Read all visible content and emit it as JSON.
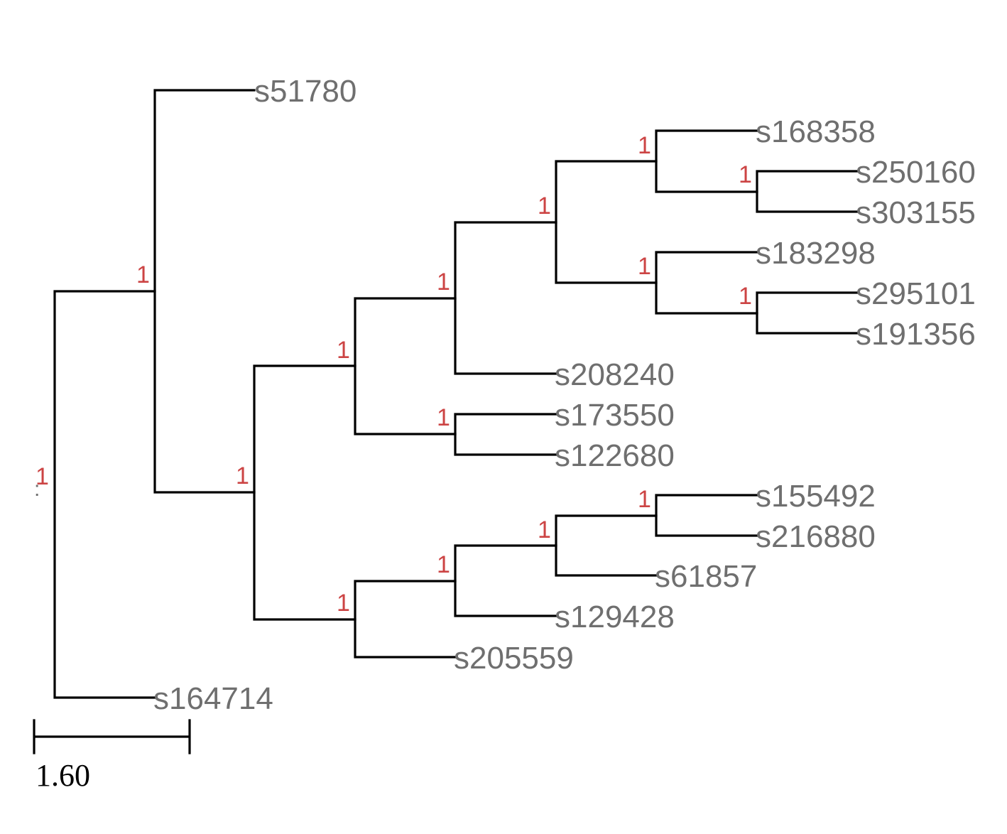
{
  "tree": {
    "leaves": [
      "s51780",
      "s168358",
      "s250160",
      "s303155",
      "s183298",
      "s295101",
      "s191356",
      "s208240",
      "s173550",
      "s122680",
      "s155492",
      "s216880",
      "s61857",
      "s129428",
      "s205559",
      "s164714"
    ],
    "support_values": [
      "1",
      "1",
      "1",
      "1",
      "1",
      "1",
      "1",
      "1",
      "1",
      "1",
      "1",
      "1",
      "1",
      "1",
      "1"
    ],
    "root_marker": ":"
  },
  "scale_bar": {
    "label": "1.60"
  },
  "colors": {
    "branch": "#000000",
    "leaf_text": "#6f6f6f",
    "support_text": "#cc4444"
  }
}
